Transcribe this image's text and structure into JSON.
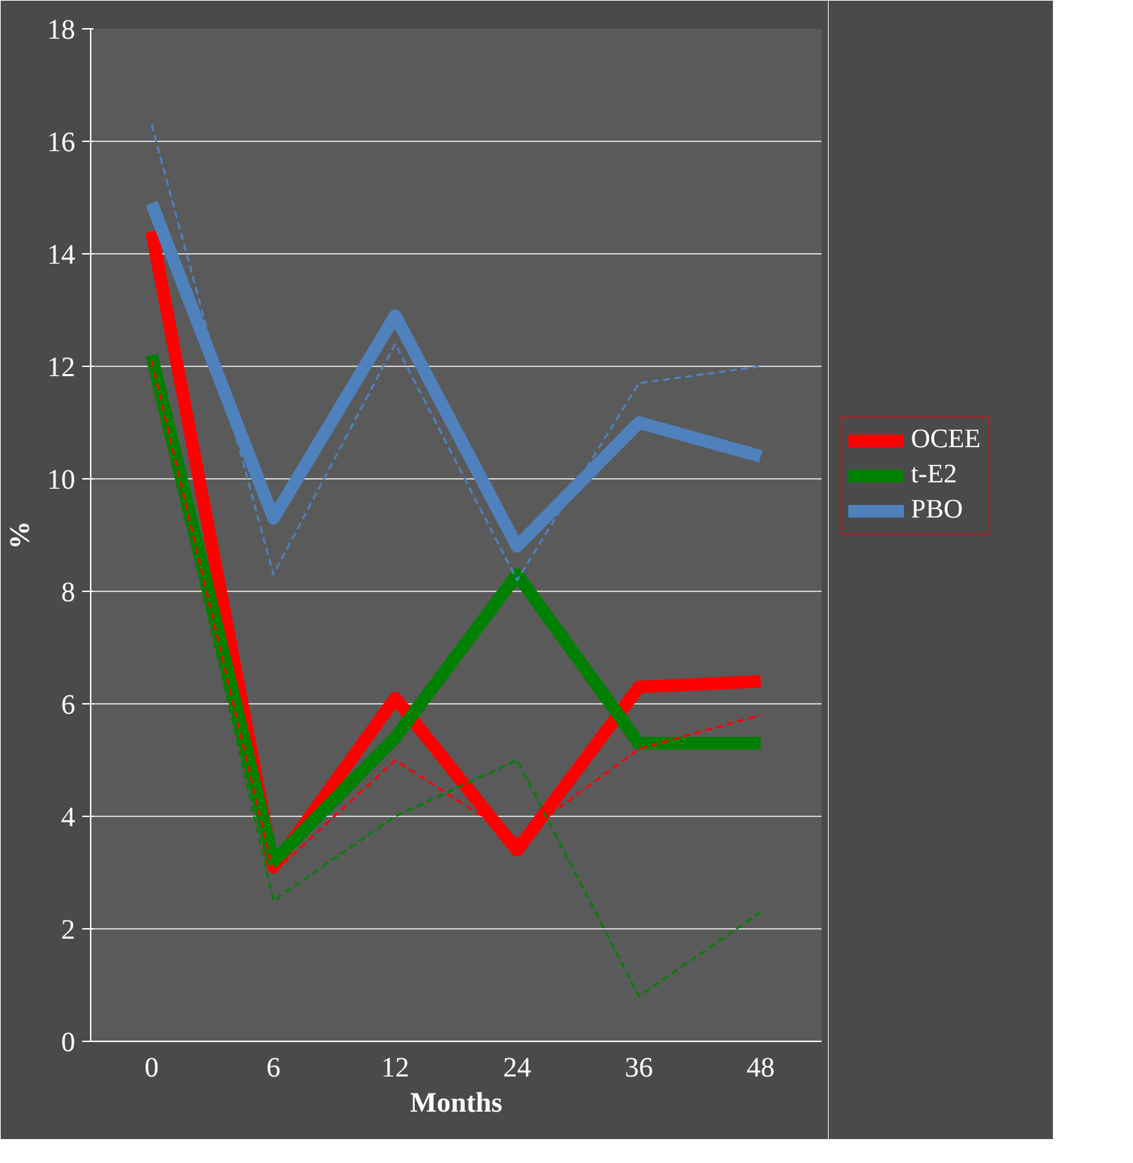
{
  "chart_data": {
    "type": "line",
    "xlabel": "Months",
    "ylabel": "%",
    "categories": [
      "0",
      "6",
      "12",
      "24",
      "36",
      "48"
    ],
    "ylim": [
      0,
      18
    ],
    "yticks": [
      0,
      2,
      4,
      6,
      8,
      10,
      12,
      14,
      16,
      18
    ],
    "grid": "y",
    "legend": "right",
    "marker": "none",
    "series": [
      {
        "name": "OCEE",
        "color": "#ff0000",
        "line_style": "solid",
        "values": [
          14.4,
          3.1,
          6.1,
          3.4,
          6.3,
          6.4
        ]
      },
      {
        "name": "t-E2",
        "color": "#008000",
        "line_style": "solid",
        "values": [
          12.2,
          3.2,
          5.4,
          8.3,
          5.3,
          5.3
        ]
      },
      {
        "name": "PBO",
        "color": "#4f81bd",
        "line_style": "solid",
        "values": [
          14.9,
          9.3,
          12.9,
          8.8,
          11.0,
          10.4
        ]
      },
      {
        "color": "#ff0000",
        "line_style": "dashed",
        "values": [
          12.1,
          3.0,
          5.0,
          3.6,
          5.2,
          5.8
        ]
      },
      {
        "color": "#008000",
        "line_style": "dashed",
        "values": [
          12.0,
          2.5,
          4.0,
          5.0,
          0.8,
          2.3
        ]
      },
      {
        "color": "#4f81bd",
        "line_style": "dashed",
        "values": [
          16.3,
          8.3,
          12.4,
          8.2,
          11.7,
          12.0
        ]
      }
    ]
  }
}
